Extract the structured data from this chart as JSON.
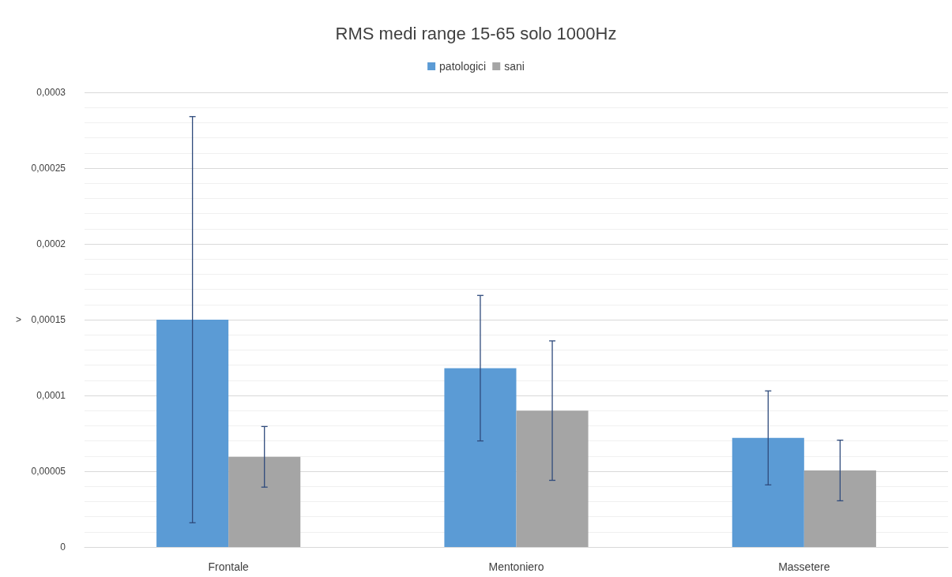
{
  "chart_data": {
    "type": "bar",
    "title": "RMS medi range 15-65 solo 1000Hz",
    "ylabel": ">",
    "categories": [
      "Frontale",
      "Mentoniero",
      "Massetere"
    ],
    "series": [
      {
        "name": "patologici",
        "color": "#5b9bd5",
        "values": [
          0.00015,
          0.000118,
          7.2e-05
        ],
        "errors": [
          0.000134,
          4.8e-05,
          3.1e-05
        ]
      },
      {
        "name": "sani",
        "color": "#a5a5a5",
        "values": [
          5.95e-05,
          9e-05,
          5.05e-05
        ],
        "errors": [
          2e-05,
          4.6e-05,
          2e-05
        ]
      }
    ],
    "ylim": [
      0,
      0.0003
    ],
    "yticks": [
      0,
      {
        "value": 5e-05,
        "label": "0,00005"
      },
      {
        "value": 0.0001,
        "label": "0,0001"
      },
      {
        "value": 0.00015,
        "label": "0,00015"
      },
      {
        "value": 0.0002,
        "label": "0,0002"
      },
      {
        "value": 0.00025,
        "label": "0,00025"
      },
      {
        "value": 0.0003,
        "label": "0,0003"
      }
    ],
    "grid": "y",
    "legend": "top"
  }
}
